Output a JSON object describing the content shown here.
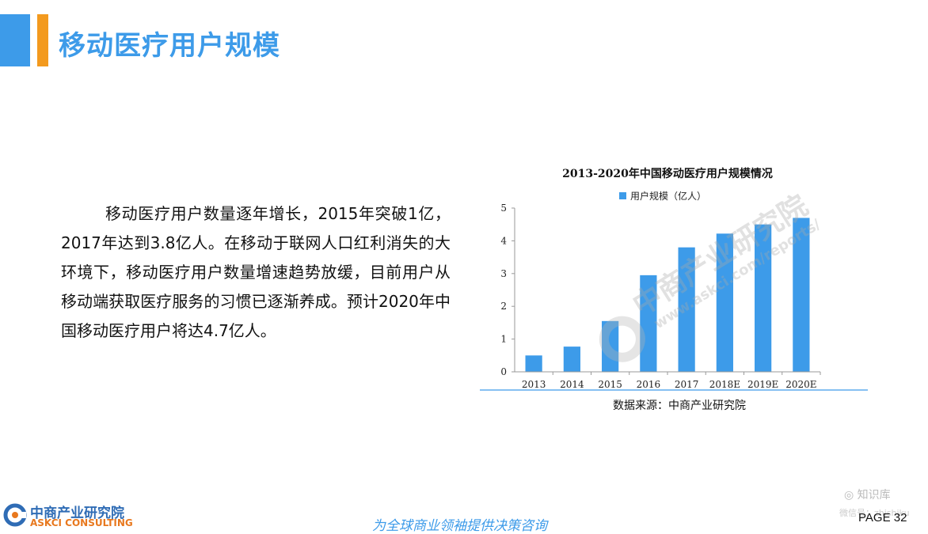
{
  "header": {
    "title": "移动医疗用户规模",
    "accent_colors": [
      "#3d9be9",
      "#f39a1e"
    ]
  },
  "body": {
    "paragraph": "移动医疗用户数量逐年增长，2015年突破1亿，2017年达到3.8亿人。在移动于联网人口红利消失的大环境下，移动医疗用户数量增速趋势放缓，目前用户从移动端获取医疗服务的习惯已逐渐养成。预计2020年中国移动医疗用户将达4.7亿人。"
  },
  "chart_data": {
    "type": "bar",
    "title": "2013-2020年中国移动医疗用户规模情况",
    "categories": [
      "2013",
      "2014",
      "2015",
      "2016",
      "2017",
      "2018E",
      "2019E",
      "2020E"
    ],
    "series": [
      {
        "name": "用户规模（亿人）",
        "values": [
          0.5,
          0.77,
          1.55,
          2.95,
          3.8,
          4.22,
          4.5,
          4.7
        ],
        "color": "#3d9be9"
      }
    ],
    "ylim": [
      0,
      5
    ],
    "yticks": [
      "0",
      "1",
      "2",
      "3",
      "4",
      "5"
    ],
    "legend_position": "top",
    "grid": false,
    "source": "数据来源：中商产业研究院"
  },
  "watermark": {
    "main": "中商产业研究院",
    "url": "www.askci.com/reports/"
  },
  "footer": {
    "logo_cn": "中商产业研究院",
    "logo_en": "ASKCI CONSULTING",
    "slogan": "为全球商业领袖提供决策咨询",
    "zhihu": "知识库",
    "zhihu_sub": "微信号：zhishiku",
    "page": "PAGE  32"
  }
}
